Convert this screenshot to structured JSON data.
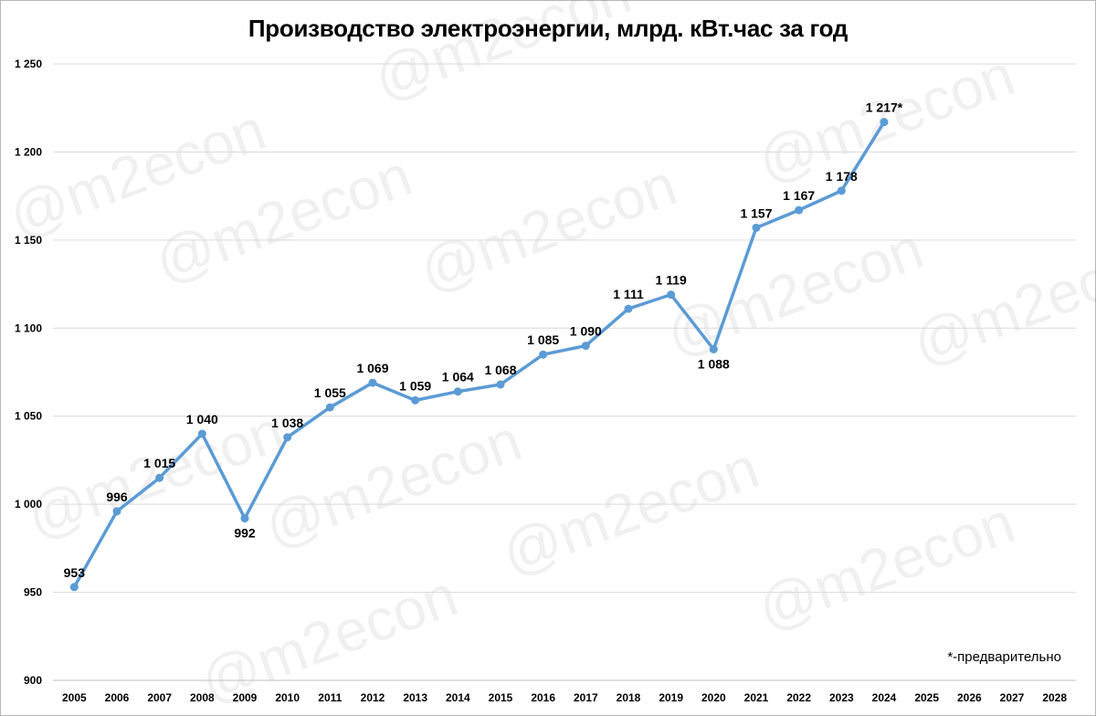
{
  "chart_data": {
    "type": "line",
    "title": "Производство электроэнергии, млрд. кВт.час за год",
    "categories": [
      "2005",
      "2006",
      "2007",
      "2008",
      "2009",
      "2010",
      "2011",
      "2012",
      "2013",
      "2014",
      "2015",
      "2016",
      "2017",
      "2018",
      "2019",
      "2020",
      "2021",
      "2022",
      "2023",
      "2024",
      "2025",
      "2026",
      "2027",
      "2028"
    ],
    "series": [
      {
        "values": [
          953,
          996,
          1015,
          1040,
          992,
          1038,
          1055,
          1069,
          1059,
          1064,
          1068,
          1085,
          1090,
          1111,
          1119,
          1088,
          1157,
          1167,
          1178,
          1217,
          null,
          null,
          null,
          null
        ]
      }
    ],
    "data_labels": [
      "953",
      "996",
      "1 015",
      "1 040",
      "992",
      "1 038",
      "1 055",
      "1 069",
      "1 059",
      "1 064",
      "1 068",
      "1 085",
      "1 090",
      "1 111",
      "1 119",
      "1 088",
      "1 157",
      "1 167",
      "1 178",
      "1 217*"
    ],
    "label_below": [
      false,
      false,
      false,
      false,
      true,
      false,
      false,
      false,
      false,
      false,
      false,
      false,
      false,
      false,
      false,
      true,
      false,
      false,
      false,
      false
    ],
    "y_ticks": [
      900,
      950,
      1000,
      1050,
      1100,
      1150,
      1200,
      1250
    ],
    "y_tick_labels": [
      "900",
      "950",
      "1 000",
      "1 050",
      "1 100",
      "1 150",
      "1 200",
      "1 250"
    ],
    "ylim": [
      900,
      1250
    ],
    "grid": true,
    "line_color": "#5b9bd5",
    "annotation": "*-предварительно",
    "watermark": "@m2econ"
  }
}
